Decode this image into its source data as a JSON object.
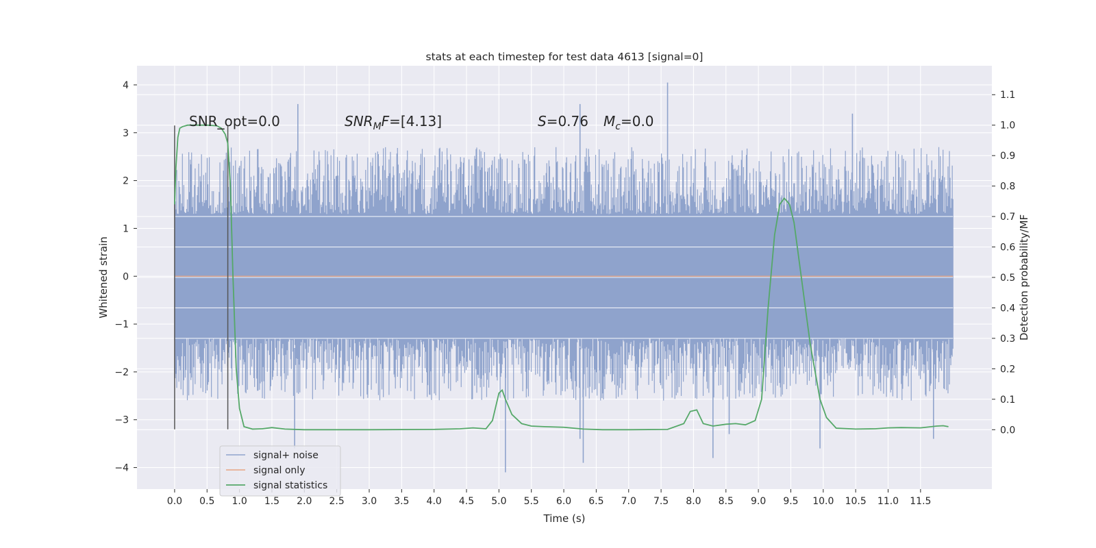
{
  "chart_data": {
    "type": "line",
    "title": "stats at each timestep for test data 4613 [signal=0]",
    "xlabel": "Time (s)",
    "ylabel": "Whitened strain",
    "y2label": "Detection probability/MF",
    "xlim": [
      -0.58,
      12.6
    ],
    "ylim": [
      -4.45,
      4.4
    ],
    "y2lim": [
      -0.195,
      1.195
    ],
    "x_ticks": [
      0.0,
      0.5,
      1.0,
      1.5,
      2.0,
      2.5,
      3.0,
      3.5,
      4.0,
      4.5,
      5.0,
      5.5,
      6.0,
      6.5,
      7.0,
      7.5,
      8.0,
      8.5,
      9.0,
      9.5,
      10.0,
      10.5,
      11.0,
      11.5
    ],
    "x_tick_labels": [
      "0.0",
      "0.5",
      "1.0",
      "1.5",
      "2.0",
      "2.5",
      "3.0",
      "3.5",
      "4.0",
      "4.5",
      "5.0",
      "5.5",
      "6.0",
      "6.5",
      "7.0",
      "7.5",
      "8.0",
      "8.5",
      "9.0",
      "9.5",
      "10.0",
      "10.5",
      "11.0",
      "11.5"
    ],
    "y_ticks": [
      -4,
      -3,
      -2,
      -1,
      0,
      1,
      2,
      3,
      4
    ],
    "y_tick_labels": [
      "−4",
      "−3",
      "−2",
      "−1",
      "0",
      "1",
      "2",
      "3",
      "4"
    ],
    "y2_ticks": [
      0.0,
      0.1,
      0.2,
      0.3,
      0.4,
      0.5,
      0.6,
      0.7,
      0.8,
      0.9,
      1.0,
      1.1
    ],
    "y2_tick_labels": [
      "0.0",
      "0.1",
      "0.2",
      "0.3",
      "0.4",
      "0.5",
      "0.6",
      "0.7",
      "0.8",
      "0.9",
      "1.0",
      "1.1"
    ],
    "grid": true,
    "legend_position": "bottom-left",
    "series": [
      {
        "name": "signal+ noise",
        "color": "#8fa3cc",
        "axis": "left",
        "x_range": [
          0.0,
          12.0
        ],
        "envelope": {
          "typical_peak_min": 1.3,
          "typical_peak_max": 2.7,
          "typical_trough_min": -1.3,
          "typical_trough_max": -2.6
        },
        "spikes": [
          {
            "x": 1.9,
            "y": 3.6
          },
          {
            "x": 7.6,
            "y": 4.05
          },
          {
            "x": 10.45,
            "y": 3.4
          },
          {
            "x": 6.25,
            "y": 3.6
          },
          {
            "x": 5.1,
            "y": -4.1
          },
          {
            "x": 6.3,
            "y": -3.9
          },
          {
            "x": 8.3,
            "y": -3.8
          },
          {
            "x": 9.95,
            "y": -3.6
          },
          {
            "x": 1.85,
            "y": -3.6
          },
          {
            "x": 11.7,
            "y": -3.4
          },
          {
            "x": 6.25,
            "y": -3.4
          },
          {
            "x": 8.55,
            "y": -3.3
          }
        ]
      },
      {
        "name": "signal only",
        "color": "#e8a582",
        "axis": "left",
        "x": [
          0.0,
          12.0
        ],
        "y": [
          0.0,
          0.0
        ]
      },
      {
        "name": "signal statistics",
        "color": "#55a868",
        "axis": "right",
        "x": [
          0.0,
          0.02,
          0.05,
          0.08,
          0.12,
          0.2,
          0.3,
          0.5,
          0.65,
          0.72,
          0.78,
          0.82,
          0.86,
          0.9,
          0.95,
          1.0,
          1.07,
          1.2,
          1.35,
          1.5,
          1.7,
          2.0,
          3.0,
          4.0,
          4.4,
          4.6,
          4.8,
          4.9,
          5.0,
          5.05,
          5.1,
          5.2,
          5.35,
          5.5,
          5.7,
          6.0,
          6.3,
          6.6,
          7.0,
          7.6,
          7.85,
          7.95,
          8.05,
          8.15,
          8.3,
          8.5,
          8.65,
          8.8,
          8.95,
          9.05,
          9.15,
          9.25,
          9.33,
          9.4,
          9.48,
          9.55,
          9.65,
          9.8,
          9.95,
          10.05,
          10.2,
          10.5,
          10.8,
          11.0,
          11.2,
          11.5,
          11.75,
          11.85,
          11.93
        ],
        "y": [
          0.74,
          0.86,
          0.96,
          0.99,
          0.995,
          1.0,
          1.0,
          1.0,
          0.998,
          0.99,
          0.97,
          0.94,
          0.8,
          0.5,
          0.2,
          0.07,
          0.01,
          0.002,
          0.003,
          0.007,
          0.002,
          0.0,
          0.0,
          0.001,
          0.003,
          0.006,
          0.003,
          0.03,
          0.12,
          0.13,
          0.1,
          0.05,
          0.02,
          0.012,
          0.01,
          0.008,
          0.002,
          0.0,
          0.0,
          0.001,
          0.02,
          0.06,
          0.065,
          0.02,
          0.012,
          0.018,
          0.02,
          0.016,
          0.03,
          0.1,
          0.4,
          0.64,
          0.74,
          0.76,
          0.74,
          0.68,
          0.52,
          0.28,
          0.1,
          0.04,
          0.005,
          0.002,
          0.003,
          0.006,
          0.007,
          0.006,
          0.012,
          0.013,
          0.01
        ]
      }
    ],
    "annotations": {
      "snr_opt": "SNR_opt=0.0",
      "snr_mf_sym": "SNR",
      "snr_mf_sub": "M",
      "snr_mf_f": "F",
      "snr_mf_val": "=[4.13]",
      "s_sym": "S",
      "s_val": "=0.76",
      "mc_sym": "M",
      "mc_sub": "c",
      "mc_val": "=0.0"
    },
    "vertical_markers": [
      {
        "x": 0.0,
        "y_from": -3.2,
        "y_to": 3.15
      },
      {
        "x": 0.82,
        "y_from": -3.2,
        "y_to": 3.15
      }
    ],
    "colors": {
      "plot_background": "#eaeaf2",
      "grid": "#ffffff",
      "marker": "#555555"
    }
  }
}
